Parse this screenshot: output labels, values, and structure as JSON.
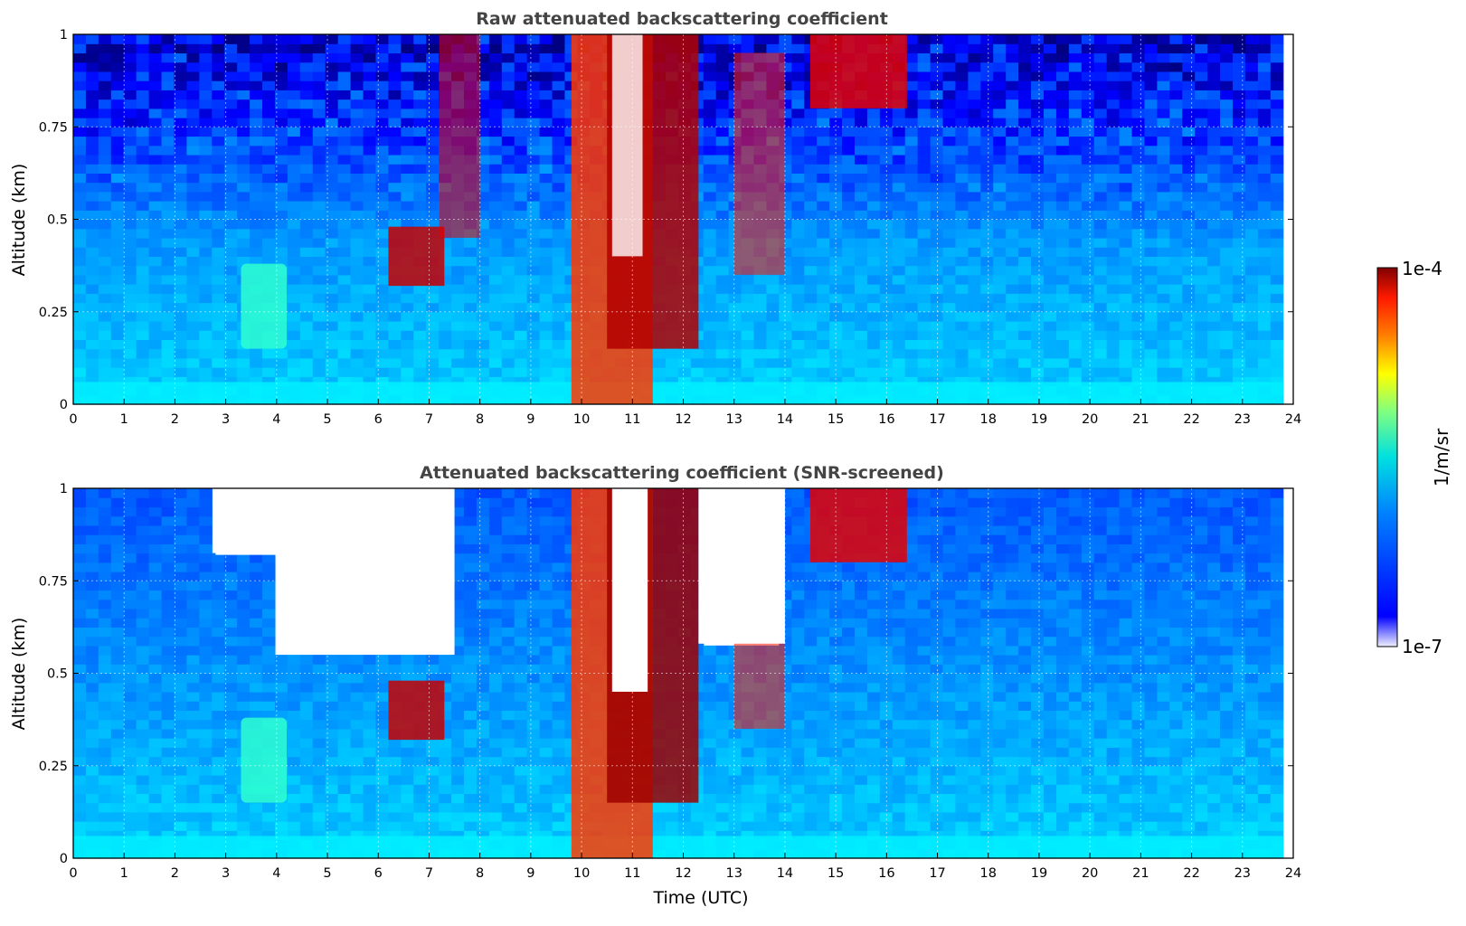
{
  "chart_data": [
    {
      "type": "heatmap",
      "title": "Raw attenuated backscattering coefficient",
      "xlabel": "",
      "ylabel": "Altitude (km)",
      "xlim": [
        0,
        24
      ],
      "ylim": [
        0,
        1
      ],
      "x_ticks": [
        0,
        1,
        2,
        3,
        4,
        5,
        6,
        7,
        8,
        9,
        10,
        11,
        12,
        13,
        14,
        15,
        16,
        17,
        18,
        19,
        20,
        21,
        22,
        23,
        24
      ],
      "y_ticks": [
        0,
        0.25,
        0.5,
        0.75,
        1
      ],
      "y_tick_labels": [
        "0",
        "0.25",
        "0.5",
        "0.75",
        "1"
      ],
      "grid": true,
      "data_x_end": 23.8,
      "snr_screened": false,
      "features": [
        {
          "kind": "surface_layer",
          "x": [
            0,
            23.8
          ],
          "y": [
            0,
            0.06
          ],
          "level": 0.36
        },
        {
          "kind": "aerosol_plume",
          "x": [
            3.3,
            4.2
          ],
          "y": [
            0.15,
            0.38
          ],
          "level": 0.42
        },
        {
          "kind": "cloud",
          "x": [
            6.2,
            7.3
          ],
          "y": [
            0.32,
            0.48
          ],
          "level": 0.93
        },
        {
          "kind": "cloud_streak",
          "x": [
            7.2,
            8.0
          ],
          "y": [
            0.45,
            1.0
          ],
          "level": 0.9
        },
        {
          "kind": "precipitation_column",
          "x": [
            9.8,
            11.4
          ],
          "y": [
            0,
            1.0
          ],
          "level": 0.82
        },
        {
          "kind": "cloud_base_slope",
          "x": [
            10.5,
            12.3
          ],
          "y": [
            0.15,
            1.0
          ],
          "level": 0.95
        },
        {
          "kind": "cloud_streaks",
          "x": [
            13.0,
            14.0
          ],
          "y": [
            0.35,
            0.95
          ],
          "level": 0.85
        },
        {
          "kind": "cloud",
          "x": [
            14.5,
            16.4
          ],
          "y": [
            0.8,
            1.0
          ],
          "level": 0.9
        },
        {
          "kind": "clear_gap",
          "x": [
            10.6,
            11.2
          ],
          "y": [
            0.4,
            1.0
          ],
          "level": null
        }
      ]
    },
    {
      "type": "heatmap",
      "title": "Attenuated backscattering coefficient (SNR-screened)",
      "xlabel": "Time (UTC)",
      "ylabel": "Altitude (km)",
      "xlim": [
        0,
        24
      ],
      "ylim": [
        0,
        1
      ],
      "x_ticks": [
        0,
        1,
        2,
        3,
        4,
        5,
        6,
        7,
        8,
        9,
        10,
        11,
        12,
        13,
        14,
        15,
        16,
        17,
        18,
        19,
        20,
        21,
        22,
        23,
        24
      ],
      "y_ticks": [
        0,
        0.25,
        0.5,
        0.75,
        1
      ],
      "y_tick_labels": [
        "0",
        "0.25",
        "0.5",
        "0.75",
        "1"
      ],
      "grid": true,
      "data_x_end": 23.8,
      "snr_screened": true,
      "masked_regions": [
        {
          "x": [
            4.0,
            7.5
          ],
          "y": [
            0.55,
            1.0
          ]
        },
        {
          "x": [
            10.6,
            11.3
          ],
          "y": [
            0.45,
            1.0
          ]
        },
        {
          "x": [
            12.3,
            14.0
          ],
          "y": [
            0.58,
            1.0
          ]
        },
        {
          "x": [
            2.8,
            4.0
          ],
          "y": [
            0.82,
            1.0
          ]
        }
      ],
      "features": [
        {
          "kind": "surface_layer",
          "x": [
            0,
            23.8
          ],
          "y": [
            0,
            0.06
          ],
          "level": 0.36
        },
        {
          "kind": "aerosol_plume",
          "x": [
            3.3,
            4.2
          ],
          "y": [
            0.15,
            0.38
          ],
          "level": 0.42
        },
        {
          "kind": "cloud",
          "x": [
            6.2,
            7.3
          ],
          "y": [
            0.32,
            0.48
          ],
          "level": 0.93
        },
        {
          "kind": "precipitation_column",
          "x": [
            9.8,
            11.4
          ],
          "y": [
            0,
            1.0
          ],
          "level": 0.82
        },
        {
          "kind": "cloud_base_slope",
          "x": [
            10.5,
            12.3
          ],
          "y": [
            0.15,
            1.0
          ],
          "level": 0.97
        },
        {
          "kind": "cloud_streaks",
          "x": [
            13.0,
            14.0
          ],
          "y": [
            0.35,
            0.95
          ],
          "level": 0.85
        },
        {
          "kind": "cloud",
          "x": [
            14.5,
            16.4
          ],
          "y": [
            0.8,
            1.0
          ],
          "level": 0.9
        }
      ]
    }
  ],
  "colorbar": {
    "max_label": "1e-4",
    "min_label": "1e-7",
    "unit_label": "1/m/sr",
    "colormap": "jet",
    "scale": "log",
    "range": [
      1e-07,
      0.0001
    ]
  }
}
